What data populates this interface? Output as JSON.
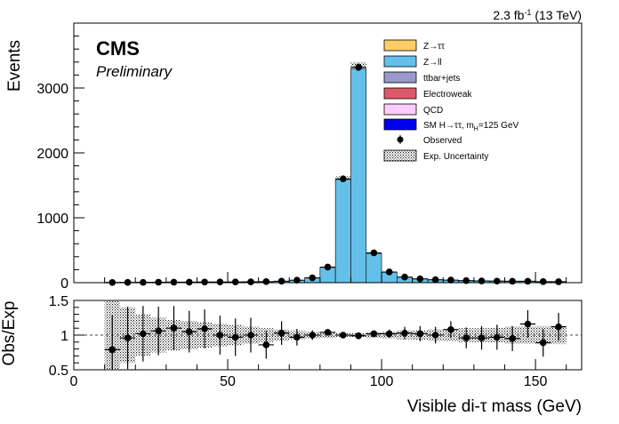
{
  "lumi_label": "2.3 fb",
  "lumi_exp": "-1",
  "lumi_energy": " (13 TeV)",
  "cms_label": "CMS",
  "prelim_label": "Preliminary",
  "chart_data": [
    {
      "type": "bar",
      "stacked": true,
      "ylabel": "Events",
      "xlim": [
        0,
        165
      ],
      "ylim": [
        0,
        4000
      ],
      "yticks": [
        "0",
        "1000",
        "2000",
        "3000"
      ],
      "bin_width": 5,
      "bin_centers": [
        12.5,
        17.5,
        22.5,
        27.5,
        32.5,
        37.5,
        42.5,
        47.5,
        52.5,
        57.5,
        62.5,
        67.5,
        72.5,
        77.5,
        82.5,
        87.5,
        92.5,
        97.5,
        102.5,
        107.5,
        112.5,
        117.5,
        122.5,
        127.5,
        132.5,
        137.5,
        142.5,
        147.5,
        152.5,
        157.5
      ],
      "series": [
        {
          "name": "Z→ττ",
          "color": "#ffcc66",
          "values": [
            0,
            0,
            0,
            0,
            0,
            0,
            0,
            0,
            0,
            0,
            0,
            0,
            0,
            0,
            0,
            0,
            0,
            0,
            0,
            0,
            0,
            0,
            0,
            0,
            0,
            0,
            0,
            0,
            0,
            0
          ]
        },
        {
          "name": "Z→ll",
          "color": "#64c0e8",
          "values": [
            3,
            4,
            5,
            6,
            7,
            8,
            9,
            10,
            11,
            13,
            16,
            22,
            38,
            75,
            235,
            1590,
            3300,
            450,
            160,
            85,
            60,
            45,
            38,
            32,
            28,
            25,
            22,
            20,
            17,
            15
          ]
        },
        {
          "name": "ttbar+jets",
          "color": "#9999cc",
          "values": [
            0,
            0,
            0,
            0,
            0,
            0,
            0,
            0,
            0,
            0,
            0,
            0,
            0,
            0,
            0,
            0,
            0,
            0,
            0,
            0,
            0,
            0,
            0,
            0,
            0,
            0,
            0,
            0,
            0,
            0
          ]
        },
        {
          "name": "Electroweak",
          "color": "#de5a6a",
          "values": [
            0,
            0,
            0,
            0,
            0,
            0,
            0,
            0,
            0,
            0,
            0,
            0,
            0,
            0,
            0,
            0,
            0,
            0,
            0,
            0,
            0,
            0,
            0,
            0,
            0,
            0,
            0,
            0,
            0,
            0
          ]
        },
        {
          "name": "QCD",
          "color": "#ffccff",
          "values": [
            0,
            0,
            0,
            0,
            0,
            0,
            0,
            0,
            0,
            0,
            0,
            0,
            0,
            0,
            0,
            0,
            0,
            0,
            0,
            0,
            0,
            0,
            0,
            0,
            0,
            0,
            0,
            0,
            0,
            0
          ]
        }
      ],
      "signal": {
        "name": "SM H→ττ, m",
        "name_sub": "H",
        "name_suffix": "=125 GeV",
        "color": "#0000ee"
      },
      "observed": {
        "name": "Observed",
        "values": [
          3,
          4,
          5,
          7,
          8,
          8,
          10,
          11,
          11,
          13,
          16,
          23,
          38,
          74,
          240,
          1600,
          3320,
          460,
          165,
          86,
          59,
          45,
          40,
          31,
          27,
          24,
          22,
          22,
          16,
          15
        ]
      },
      "uncertainty": {
        "name": "Exp. Uncertainty"
      }
    },
    {
      "type": "scatter",
      "xlabel": "Visible di-τ mass (GeV)",
      "ylabel": "Obs/Exp",
      "xlim": [
        0,
        165
      ],
      "ylim": [
        0.5,
        1.5
      ],
      "xticks": [
        "0",
        "50",
        "100",
        "150"
      ],
      "yticks": [
        "0.5",
        "1",
        "1.5"
      ],
      "x": [
        12.5,
        17.5,
        22.5,
        27.5,
        32.5,
        37.5,
        42.5,
        47.5,
        52.5,
        57.5,
        62.5,
        67.5,
        72.5,
        77.5,
        82.5,
        87.5,
        92.5,
        97.5,
        102.5,
        107.5,
        112.5,
        117.5,
        122.5,
        127.5,
        132.5,
        137.5,
        142.5,
        147.5,
        152.5,
        157.5
      ],
      "ratio": [
        0.79,
        0.96,
        1.02,
        1.06,
        1.1,
        1.05,
        1.09,
        1.0,
        0.97,
        1.0,
        0.86,
        1.03,
        0.97,
        1.0,
        1.04,
        1.0,
        0.99,
        1.02,
        1.02,
        1.03,
        1.02,
        1.0,
        1.08,
        0.96,
        0.96,
        0.97,
        0.95,
        1.16,
        0.89,
        1.12
      ],
      "err": [
        0.5,
        0.45,
        0.4,
        0.35,
        0.32,
        0.3,
        0.28,
        0.28,
        0.27,
        0.25,
        0.2,
        0.17,
        0.12,
        0.07,
        0.04,
        0.02,
        0.02,
        0.04,
        0.06,
        0.09,
        0.11,
        0.12,
        0.12,
        0.15,
        0.17,
        0.18,
        0.18,
        0.2,
        0.2,
        0.2
      ],
      "band": [
        0.6,
        0.4,
        0.3,
        0.25,
        0.22,
        0.2,
        0.18,
        0.16,
        0.15,
        0.12,
        0.1,
        0.08,
        0.06,
        0.05,
        0.04,
        0.03,
        0.03,
        0.04,
        0.05,
        0.06,
        0.07,
        0.08,
        0.09,
        0.1,
        0.1,
        0.11,
        0.12,
        0.12,
        0.13,
        0.13
      ]
    }
  ]
}
